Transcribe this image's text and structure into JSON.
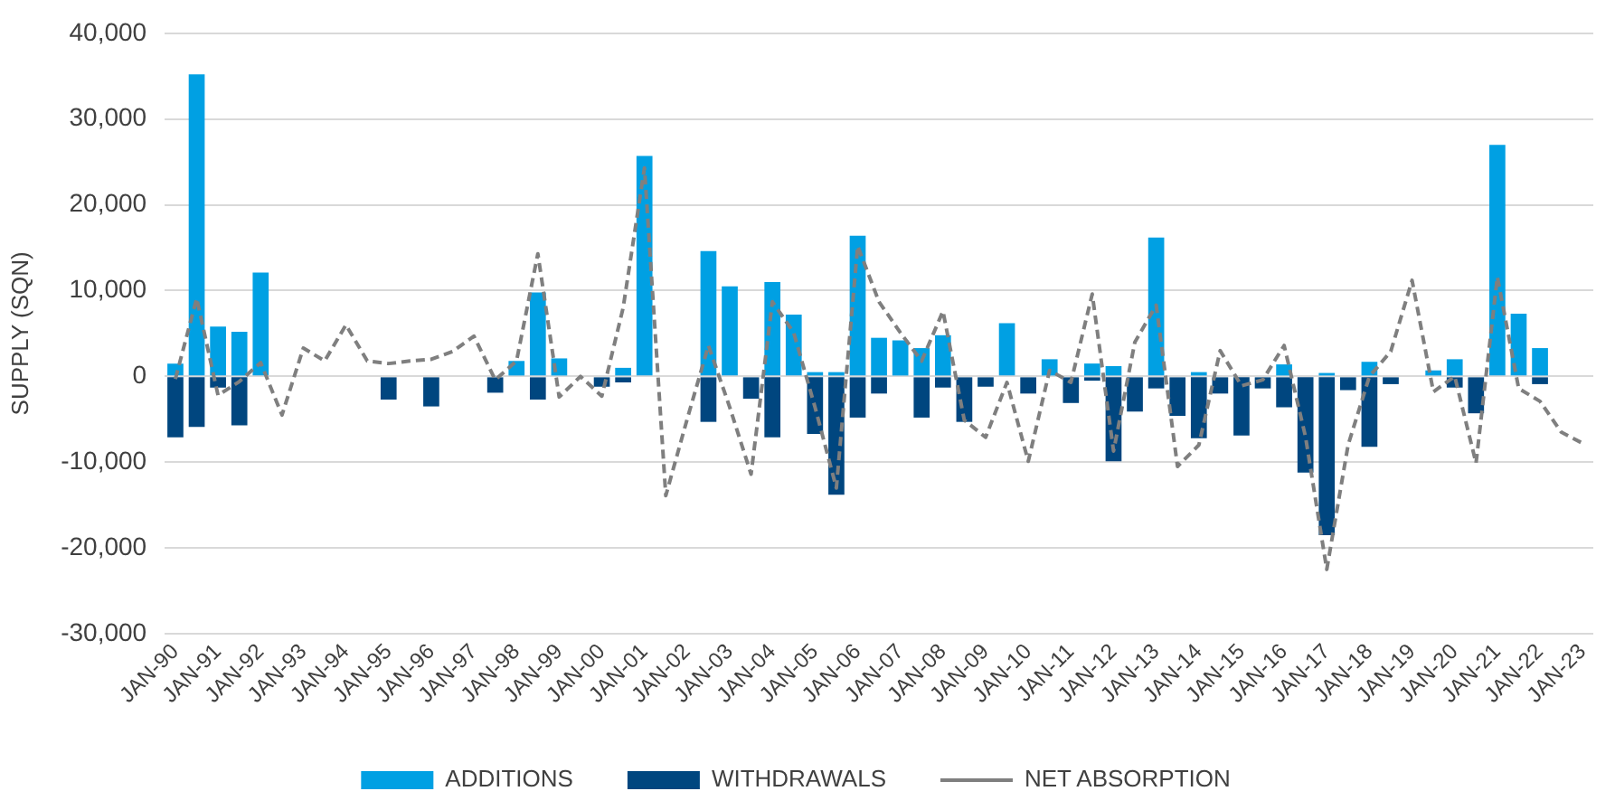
{
  "chart_data": {
    "type": "bar",
    "ylabel": "SUPPLY (SQN)",
    "stacked": true,
    "grid": "y",
    "legend": "bottom",
    "marker": "none",
    "categories": [
      "JAN-90",
      null,
      "JAN-91",
      null,
      "JAN-92",
      null,
      "JAN-93",
      null,
      "JAN-94",
      null,
      "JAN-95",
      null,
      "JAN-96",
      null,
      "JAN-97",
      null,
      "JAN-98",
      null,
      "JAN-99",
      null,
      "JAN-00",
      null,
      "JAN-01",
      null,
      "JAN-02",
      null,
      "JAN-03",
      null,
      "JAN-04",
      null,
      "JAN-05",
      null,
      "JAN-06",
      null,
      "JAN-07",
      null,
      "JAN-08",
      null,
      "JAN-09",
      null,
      "JAN-10",
      null,
      "JAN-11",
      null,
      "JAN-12",
      null,
      "JAN-13",
      null,
      "JAN-14",
      null,
      "JAN-15",
      null,
      "JAN-16",
      null,
      "JAN-17",
      null,
      "JAN-18",
      null,
      "JAN-19",
      null,
      "JAN-20",
      null,
      "JAN-21",
      null,
      "JAN-22",
      null,
      "JAN-23"
    ],
    "ylim": [
      -30000,
      40000
    ],
    "yticks": [
      {
        "value": -30000,
        "label": "-30,000"
      },
      {
        "value": -20000,
        "label": "-20,000"
      },
      {
        "value": -10000,
        "label": "-10,000"
      },
      0,
      {
        "value": 10000,
        "label": "10,000"
      },
      {
        "value": 20000,
        "label": "20,000"
      },
      {
        "value": 30000,
        "label": "30,000"
      },
      {
        "value": 40000,
        "label": "40,000"
      }
    ],
    "series": [
      {
        "name": "ADDITIONS",
        "color": "#00a0e3",
        "values": [
          1500,
          35200,
          5800,
          5200,
          12100,
          null,
          null,
          null,
          null,
          null,
          null,
          null,
          null,
          null,
          null,
          null,
          1800,
          9800,
          2100,
          null,
          null,
          1000,
          25700,
          null,
          null,
          14600,
          10500,
          null,
          11000,
          7200,
          500,
          500,
          16400,
          4500,
          4200,
          3300,
          4800,
          null,
          null,
          6200,
          null,
          2000,
          null,
          1500,
          1200,
          null,
          16200,
          null,
          500,
          null,
          null,
          null,
          1400,
          null,
          400,
          null,
          1700,
          null,
          null,
          700,
          2000,
          null,
          27000,
          7300,
          3300,
          null,
          null
        ]
      },
      {
        "name": "WITHDRAWALS",
        "color": "#00467f",
        "values": [
          -7100,
          -5900,
          -1300,
          -5700,
          null,
          null,
          null,
          null,
          null,
          null,
          -2700,
          null,
          -3500,
          null,
          null,
          -1900,
          null,
          -2700,
          null,
          null,
          -1200,
          -700,
          null,
          null,
          null,
          -5300,
          null,
          -2600,
          -7100,
          null,
          -6700,
          -13800,
          -4800,
          -2000,
          null,
          -4800,
          -1300,
          -5300,
          -1200,
          null,
          -2000,
          null,
          -3100,
          -500,
          -9900,
          -4100,
          -1400,
          -4600,
          -7200,
          -2000,
          -6900,
          -1400,
          -3600,
          -11200,
          -18500,
          -1600,
          -8200,
          -900,
          null,
          null,
          -1300,
          -4300,
          null,
          null,
          -900,
          null,
          null
        ]
      },
      {
        "name": "NET ABSORPTION",
        "type": "line",
        "color": "#7f7f7f",
        "line_style": "dashed",
        "values": [
          -300,
          9100,
          -2200,
          -600,
          1600,
          -4500,
          3300,
          1800,
          6000,
          1800,
          1500,
          1800,
          2000,
          2900,
          4700,
          -400,
          1800,
          14300,
          -2400,
          0,
          -2300,
          8000,
          24300,
          -13900,
          -5000,
          3600,
          -3600,
          -11400,
          8700,
          5100,
          -3600,
          -13000,
          15200,
          8700,
          5100,
          1800,
          7600,
          -5100,
          -7100,
          -700,
          -9900,
          700,
          -700,
          9600,
          -8700,
          4000,
          8300,
          -10500,
          -8000,
          3000,
          -1100,
          -400,
          3600,
          -7000,
          -22500,
          -8000,
          0,
          2900,
          11200,
          -1800,
          0,
          -10100,
          11600,
          -1400,
          -2900,
          -6500,
          -7800
        ]
      }
    ]
  }
}
